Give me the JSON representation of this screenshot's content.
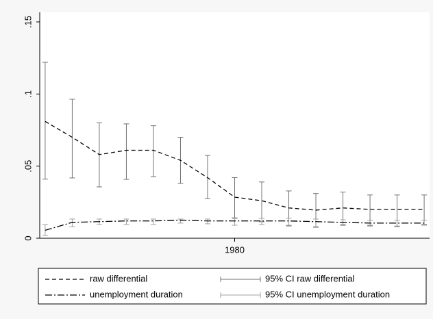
{
  "chart_data": {
    "type": "line",
    "x": [
      1973,
      1974,
      1975,
      1976,
      1977,
      1978,
      1979,
      1980,
      1981,
      1982,
      1983,
      1984,
      1985,
      1986,
      1987
    ],
    "xlim": [
      1972.8,
      1987.2
    ],
    "xticks": [
      1980
    ],
    "ylim": [
      0,
      0.15
    ],
    "yticks": [
      0,
      {
        "value": 0.05,
        "label": ".05"
      },
      {
        "value": 0.1,
        "label": ".1"
      },
      {
        "value": 0.15,
        "label": ".15"
      }
    ],
    "series": [
      {
        "name": "raw differential",
        "color": "#000000",
        "dash": "6,4",
        "values": [
          0.081,
          0.07,
          0.058,
          0.061,
          0.061,
          0.054,
          0.042,
          0.0285,
          0.026,
          0.021,
          0.0195,
          0.021,
          0.02,
          0.02,
          0.02
        ],
        "ci_name": "95% CI raw differential",
        "ci_color": "#707070",
        "ci_low": [
          0.041,
          0.0418,
          0.0356,
          0.0408,
          0.0427,
          0.038,
          0.0275,
          0.0138,
          0.0114,
          0.0085,
          0.0076,
          0.009,
          0.0085,
          0.008,
          0.0095
        ],
        "ci_high": [
          0.122,
          0.0964,
          0.08,
          0.0793,
          0.078,
          0.07,
          0.0574,
          0.042,
          0.039,
          0.0328,
          0.031,
          0.032,
          0.03,
          0.03,
          0.03
        ]
      },
      {
        "name": "unemployment duration",
        "color": "#000000",
        "dash": "10,3,2,3",
        "values": [
          0.0055,
          0.011,
          0.0115,
          0.012,
          0.012,
          0.0125,
          0.012,
          0.012,
          0.012,
          0.012,
          0.0115,
          0.011,
          0.0105,
          0.0105,
          0.0105
        ],
        "ci_name": "95% CI unemployment duration",
        "ci_color": "#a0a0a0",
        "ci_low": [
          0.002,
          0.008,
          0.0095,
          0.0095,
          0.0095,
          0.0105,
          0.01,
          0.009,
          0.0095,
          0.009,
          0.008,
          0.0095,
          0.009,
          0.0085,
          0.009
        ],
        "ci_high": [
          0.0095,
          0.0133,
          0.0133,
          0.0133,
          0.0133,
          0.0133,
          0.0133,
          0.0142,
          0.0138,
          0.0138,
          0.0133,
          0.0128,
          0.0124,
          0.0124,
          0.0124
        ]
      }
    ]
  }
}
